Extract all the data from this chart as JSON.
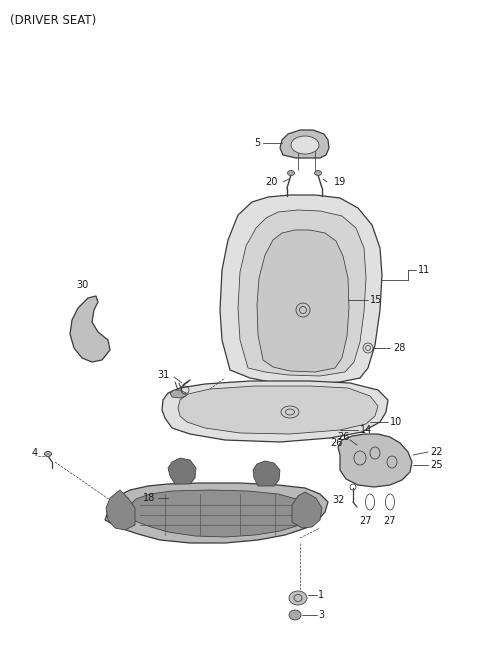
{
  "title": "(DRIVER SEAT)",
  "bg_color": "#ffffff",
  "line_color": "#3a3a3a",
  "text_color": "#1a1a1a",
  "font_size_title": 8.5,
  "font_size_label": 7.0,
  "fig_width": 4.8,
  "fig_height": 6.56,
  "dpi": 100,
  "label_line_color": "#222222",
  "part_fill": "#e0e0e0",
  "part_fill_dark": "#c0c0c0",
  "part_fill_darker": "#a8a8a8"
}
